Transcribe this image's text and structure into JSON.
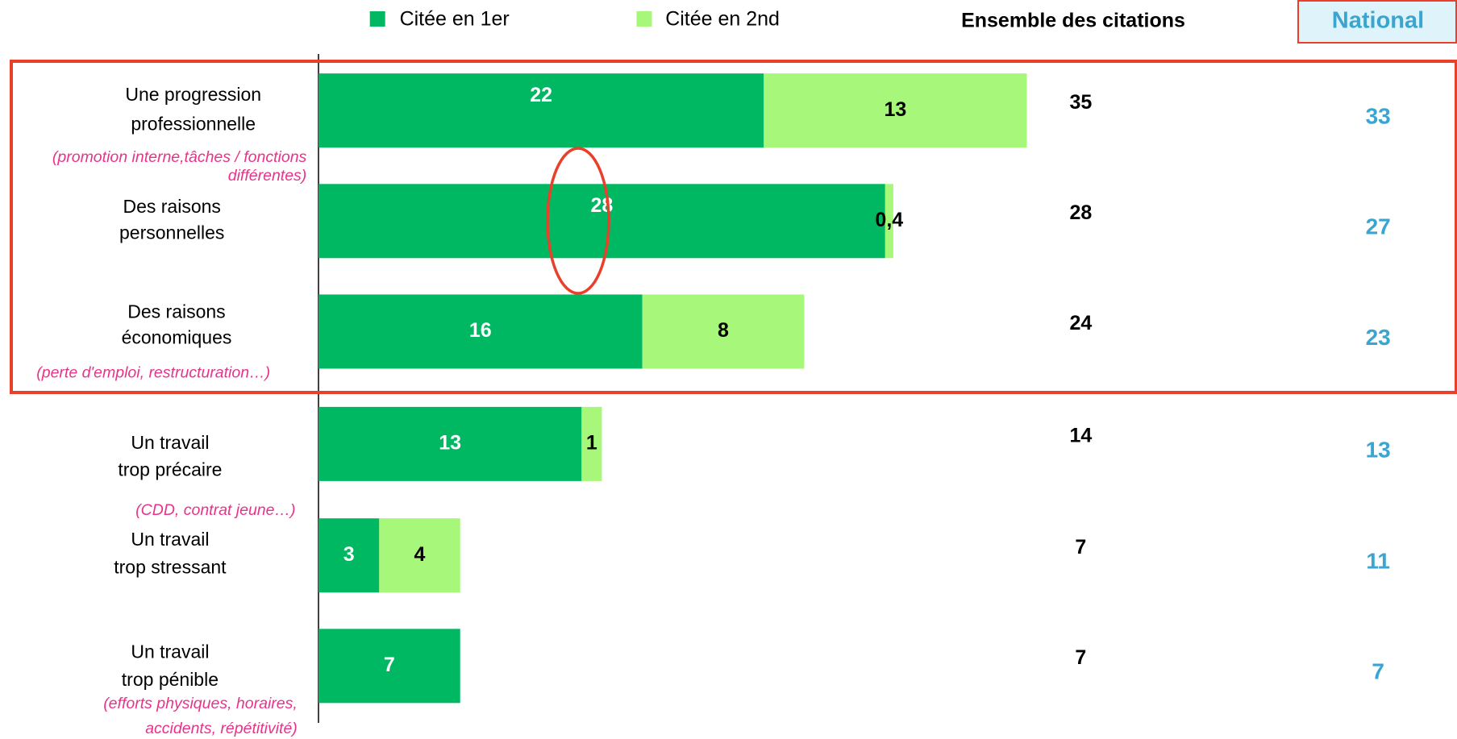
{
  "chart_data": {
    "type": "stacked_barh",
    "categories": [
      [
        "Une progression",
        "professionnelle"
      ],
      [
        "Des raisons",
        "personnelles"
      ],
      [
        "Des raisons",
        "économiques"
      ],
      [
        "Un travail",
        "trop précaire"
      ],
      [
        "Un travail",
        "trop stressant"
      ],
      [
        "Un travail",
        "trop pénible"
      ]
    ],
    "category_notes": [
      [
        "(promotion interne,tâches / fonctions",
        "différentes)"
      ],
      null,
      [
        "(perte d'emploi, restructuration…)"
      ],
      [
        "(CDD, contrat jeune…)"
      ],
      null,
      [
        "(efforts physiques, horaires,",
        "accidents, répétitivité)"
      ]
    ],
    "series": [
      {
        "name": "Citée en 1er",
        "color": "#00b862",
        "values": [
          22,
          28,
          16,
          13,
          3,
          7
        ]
      },
      {
        "name": "Citée en 2nd",
        "color": "#a6f77a",
        "values": [
          13,
          0.4,
          8,
          1,
          4,
          null
        ],
        "value_labels": [
          "13",
          "0,4",
          "8",
          "1",
          "4",
          null
        ]
      }
    ],
    "xlim": [
      0,
      40
    ],
    "totals_title": "Ensemble des citations",
    "totals": [
      35,
      28,
      24,
      14,
      7,
      7
    ],
    "national_title": "National",
    "national": [
      33,
      27,
      23,
      13,
      11,
      7
    ]
  }
}
